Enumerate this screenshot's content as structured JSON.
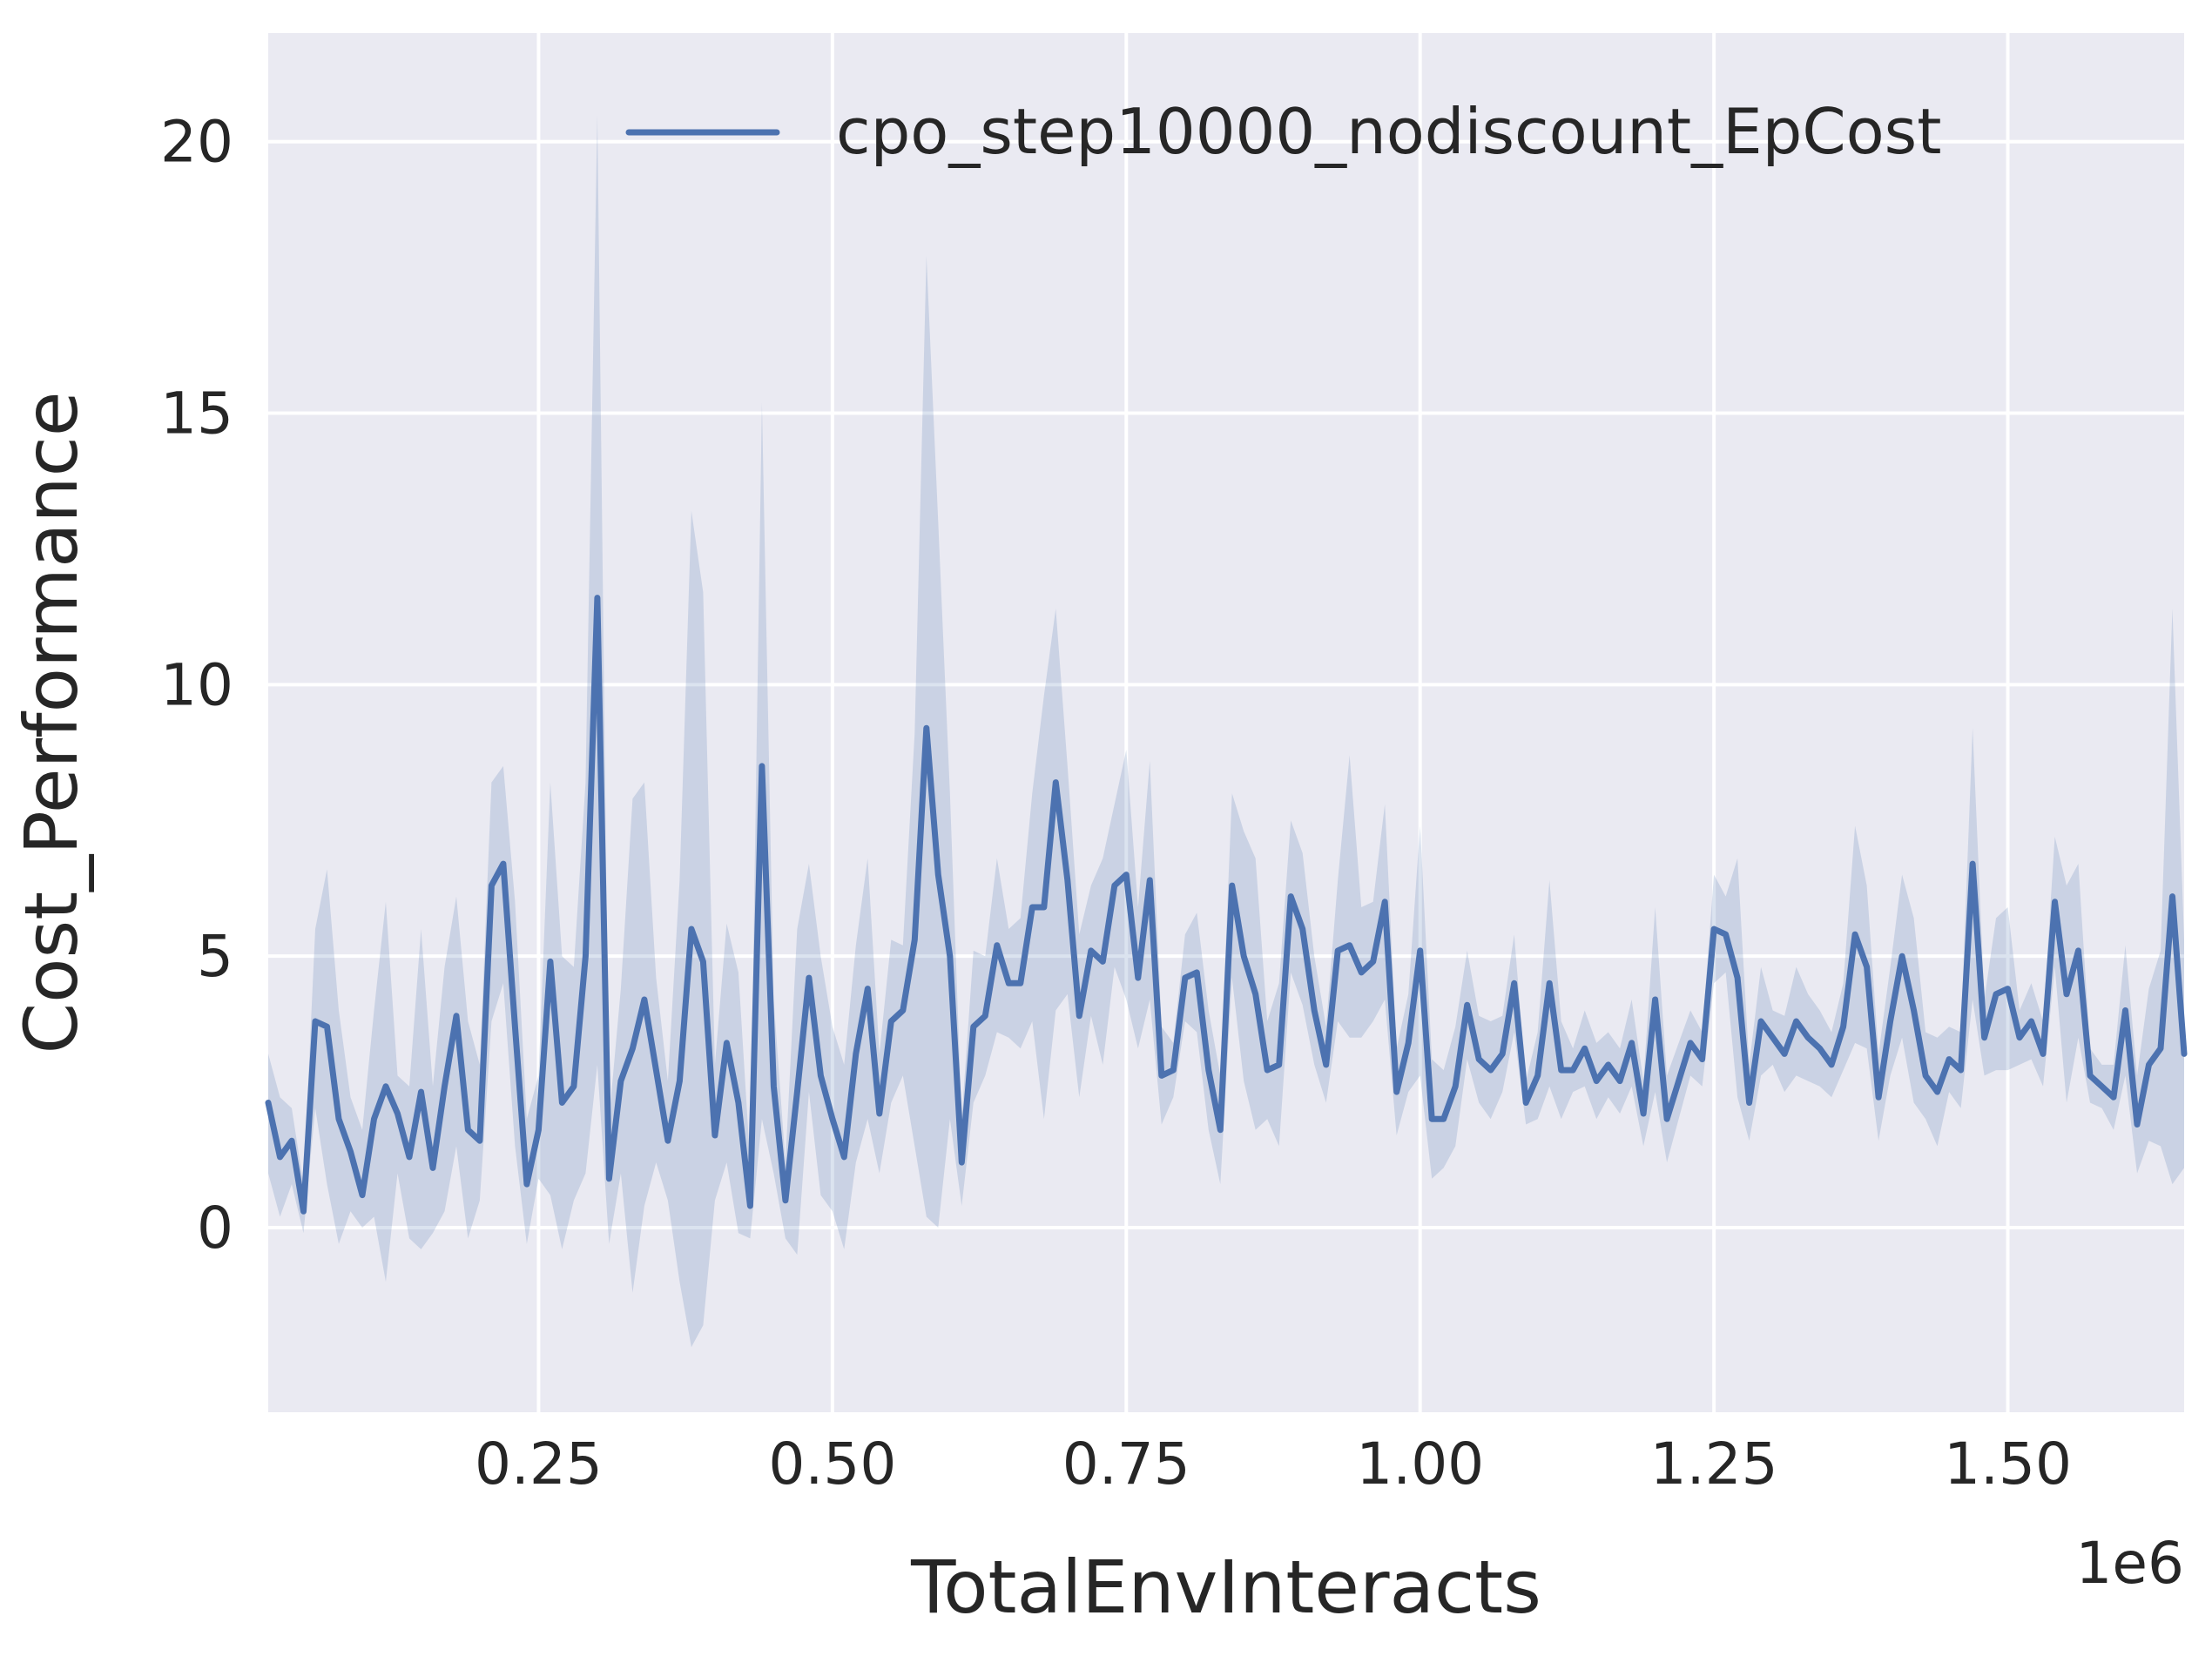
{
  "chart_data": {
    "type": "line",
    "title": "",
    "xlabel": "TotalEnvInteracts",
    "ylabel": "Cost_Performance",
    "x_offset_label": "1e6",
    "xlim": [
      0.02,
      1.65
    ],
    "ylim": [
      -3.4,
      22.0
    ],
    "x_ticks": [
      0.25,
      0.5,
      0.75,
      1.0,
      1.25,
      1.5
    ],
    "x_tick_labels": [
      "0.25",
      "0.50",
      "0.75",
      "1.00",
      "1.25",
      "1.50"
    ],
    "y_ticks": [
      0,
      5,
      10,
      15,
      20
    ],
    "y_tick_labels": [
      "0",
      "5",
      "10",
      "15",
      "20"
    ],
    "grid": true,
    "legend_position": "top-right",
    "colors": {
      "line": "#4c72b0",
      "band": "#4c72b0",
      "background": "#eaeaf2",
      "grid": "#ffffff"
    },
    "series": [
      {
        "name": "cpo_step10000_nodiscount_EpCost",
        "x": [
          0.02,
          0.03,
          0.04,
          0.05,
          0.06,
          0.07,
          0.08,
          0.09,
          0.1,
          0.11,
          0.12,
          0.13,
          0.14,
          0.15,
          0.16,
          0.17,
          0.18,
          0.19,
          0.2,
          0.21,
          0.22,
          0.23,
          0.24,
          0.25,
          0.26,
          0.27,
          0.28,
          0.29,
          0.3,
          0.31,
          0.32,
          0.33,
          0.34,
          0.35,
          0.36,
          0.37,
          0.38,
          0.39,
          0.4,
          0.41,
          0.42,
          0.43,
          0.44,
          0.45,
          0.46,
          0.47,
          0.48,
          0.49,
          0.5,
          0.51,
          0.52,
          0.53,
          0.54,
          0.55,
          0.56,
          0.57,
          0.58,
          0.59,
          0.6,
          0.61,
          0.62,
          0.63,
          0.64,
          0.65,
          0.66,
          0.67,
          0.68,
          0.69,
          0.7,
          0.71,
          0.72,
          0.73,
          0.74,
          0.75,
          0.76,
          0.77,
          0.78,
          0.79,
          0.8,
          0.81,
          0.82,
          0.83,
          0.84,
          0.85,
          0.86,
          0.87,
          0.88,
          0.89,
          0.9,
          0.91,
          0.92,
          0.93,
          0.94,
          0.95,
          0.96,
          0.97,
          0.98,
          0.99,
          1.0,
          1.01,
          1.02,
          1.03,
          1.04,
          1.05,
          1.06,
          1.07,
          1.08,
          1.09,
          1.1,
          1.11,
          1.12,
          1.13,
          1.14,
          1.15,
          1.16,
          1.17,
          1.18,
          1.19,
          1.2,
          1.21,
          1.22,
          1.23,
          1.24,
          1.25,
          1.26,
          1.27,
          1.28,
          1.29,
          1.3,
          1.31,
          1.32,
          1.33,
          1.34,
          1.35,
          1.36,
          1.37,
          1.38,
          1.39,
          1.4,
          1.41,
          1.42,
          1.43,
          1.44,
          1.45,
          1.46,
          1.47,
          1.48,
          1.49,
          1.5,
          1.51,
          1.52,
          1.53,
          1.54,
          1.55,
          1.56,
          1.57,
          1.58,
          1.59,
          1.6,
          1.61,
          1.62,
          1.63,
          1.64,
          1.65
        ],
        "y": [
          2.3,
          1.3,
          1.6,
          0.3,
          3.8,
          3.7,
          2.0,
          1.4,
          0.6,
          2.0,
          2.6,
          2.1,
          1.3,
          2.5,
          1.1,
          2.6,
          3.9,
          1.8,
          1.6,
          6.3,
          6.7,
          3.7,
          0.8,
          1.8,
          4.9,
          2.3,
          2.6,
          5.0,
          11.6,
          0.9,
          2.7,
          3.3,
          4.2,
          2.9,
          1.6,
          2.7,
          5.5,
          4.9,
          1.7,
          3.4,
          2.3,
          0.4,
          8.5,
          2.6,
          0.5,
          2.5,
          4.6,
          2.8,
          2.0,
          1.3,
          3.2,
          4.4,
          2.1,
          3.8,
          4.0,
          5.3,
          9.2,
          6.5,
          5.0,
          1.2,
          3.7,
          3.9,
          5.2,
          4.5,
          4.5,
          5.9,
          5.9,
          8.2,
          6.4,
          3.9,
          5.1,
          4.9,
          6.3,
          6.5,
          4.6,
          6.4,
          2.8,
          2.9,
          4.6,
          4.7,
          2.9,
          1.8,
          6.3,
          5.0,
          4.3,
          2.9,
          3.0,
          6.1,
          5.5,
          4.0,
          3.0,
          5.1,
          5.2,
          4.7,
          4.9,
          6.0,
          2.5,
          3.4,
          5.1,
          2.0,
          2.0,
          2.6,
          4.1,
          3.1,
          2.9,
          3.2,
          4.5,
          2.3,
          2.8,
          4.5,
          2.9,
          2.9,
          3.3,
          2.7,
          3.0,
          2.7,
          3.4,
          2.1,
          4.2,
          2.0,
          2.7,
          3.4,
          3.1,
          5.5,
          5.4,
          4.6,
          2.3,
          3.8,
          3.5,
          3.2,
          3.8,
          3.5,
          3.3,
          3.0,
          3.7,
          5.4,
          4.8,
          2.4,
          3.8,
          5.0,
          4.0,
          2.8,
          2.5,
          3.1,
          2.9,
          6.7,
          3.5,
          4.3,
          4.4,
          3.5,
          3.8,
          3.2,
          6.0,
          4.3,
          5.1,
          2.8,
          2.6,
          2.4,
          4.0,
          1.9,
          3.0,
          3.3,
          6.1,
          3.2
        ],
        "lower": [
          1.0,
          0.2,
          0.8,
          -0.1,
          2.2,
          0.8,
          -0.3,
          0.3,
          0.0,
          0.2,
          -1.0,
          1.0,
          -0.2,
          -0.4,
          -0.1,
          0.3,
          1.5,
          -0.2,
          0.5,
          3.8,
          4.5,
          1.5,
          -0.3,
          0.9,
          0.6,
          -0.4,
          0.5,
          1.0,
          3.0,
          -0.3,
          1.0,
          -1.2,
          0.4,
          1.2,
          0.5,
          -1.0,
          -2.2,
          -1.8,
          0.5,
          1.2,
          -0.1,
          -0.2,
          2.0,
          1.0,
          -0.2,
          -0.5,
          2.5,
          0.6,
          0.3,
          -0.4,
          1.2,
          2.0,
          1.0,
          2.3,
          2.8,
          1.5,
          0.2,
          0.0,
          2.0,
          0.4,
          2.3,
          2.8,
          3.6,
          3.5,
          3.3,
          3.8,
          2.0,
          4.0,
          4.3,
          2.4,
          3.9,
          3.0,
          4.8,
          4.2,
          3.3,
          4.2,
          1.9,
          2.4,
          3.8,
          3.6,
          1.8,
          0.8,
          4.6,
          2.7,
          1.8,
          2.0,
          1.5,
          4.7,
          4.1,
          3.0,
          2.3,
          3.8,
          3.5,
          3.5,
          3.8,
          4.2,
          1.7,
          2.5,
          2.8,
          0.9,
          1.1,
          1.5,
          3.1,
          2.3,
          2.0,
          2.5,
          3.6,
          1.9,
          2.0,
          2.6,
          2.0,
          2.5,
          2.6,
          2.0,
          2.4,
          2.1,
          2.6,
          1.5,
          2.5,
          1.2,
          2.0,
          2.8,
          2.6,
          4.5,
          4.7,
          2.4,
          1.6,
          2.8,
          3.0,
          2.5,
          2.8,
          2.7,
          2.6,
          2.4,
          2.9,
          3.4,
          3.3,
          1.6,
          2.8,
          3.5,
          2.3,
          2.0,
          1.5,
          2.5,
          2.2,
          4.2,
          2.8,
          2.9,
          2.9,
          3.0,
          3.1,
          2.6,
          4.8,
          2.3,
          3.5,
          2.3,
          2.2,
          1.8,
          2.8,
          1.0,
          1.6,
          1.5,
          0.8,
          1.1
        ],
        "upper": [
          3.2,
          2.4,
          2.2,
          0.8,
          5.5,
          6.6,
          4.0,
          2.4,
          1.8,
          4.0,
          6.0,
          2.8,
          2.6,
          5.5,
          2.6,
          4.8,
          6.1,
          3.8,
          3.0,
          8.2,
          8.5,
          6.0,
          2.0,
          2.8,
          8.2,
          5.0,
          4.8,
          8.2,
          20.5,
          2.0,
          4.4,
          7.9,
          8.2,
          4.6,
          2.7,
          6.4,
          13.2,
          11.7,
          3.0,
          5.6,
          4.7,
          1.2,
          15.2,
          4.2,
          1.2,
          5.5,
          6.7,
          5.0,
          3.7,
          3.0,
          5.2,
          6.8,
          3.2,
          5.3,
          5.2,
          9.1,
          17.9,
          13.0,
          8.0,
          2.0,
          5.1,
          5.0,
          6.8,
          5.5,
          5.7,
          8.0,
          9.8,
          11.4,
          8.5,
          5.4,
          6.3,
          6.8,
          7.8,
          8.8,
          5.9,
          8.6,
          3.7,
          3.4,
          5.4,
          5.8,
          4.0,
          2.8,
          8.0,
          7.3,
          6.8,
          3.8,
          4.5,
          7.5,
          6.9,
          5.0,
          3.7,
          6.4,
          8.7,
          5.9,
          6.0,
          7.8,
          3.3,
          4.3,
          7.4,
          3.1,
          2.9,
          3.7,
          5.1,
          3.9,
          3.8,
          3.9,
          5.4,
          2.7,
          3.6,
          6.4,
          3.8,
          3.3,
          4.0,
          3.4,
          3.6,
          3.3,
          4.2,
          2.7,
          5.9,
          2.8,
          3.4,
          4.0,
          3.6,
          6.5,
          6.1,
          6.8,
          3.0,
          4.8,
          4.0,
          3.9,
          4.8,
          4.3,
          4.0,
          3.6,
          4.5,
          7.4,
          6.3,
          3.2,
          4.8,
          6.5,
          5.7,
          3.6,
          3.5,
          3.7,
          3.6,
          9.2,
          4.2,
          5.7,
          5.9,
          4.0,
          4.5,
          3.8,
          7.2,
          6.3,
          6.7,
          3.3,
          3.0,
          3.0,
          5.2,
          2.8,
          4.4,
          5.1,
          11.4,
          5.3
        ]
      }
    ]
  }
}
